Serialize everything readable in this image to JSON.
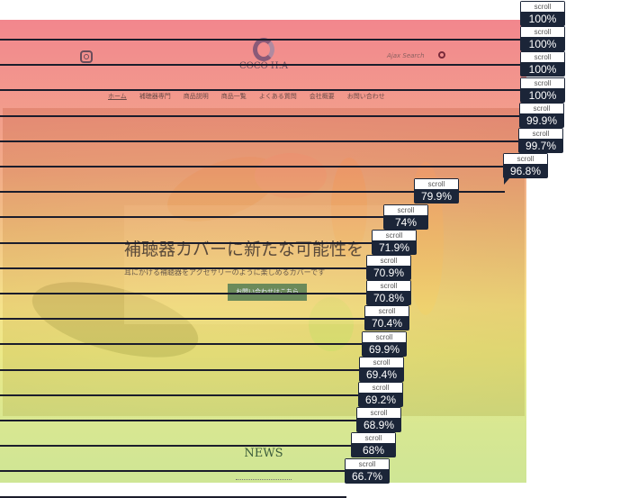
{
  "header": {
    "logo_text": "COCO H.A",
    "search_placeholder": "Ajax Search"
  },
  "nav": {
    "items": [
      "ホーム",
      "補聴器専門",
      "商品説明",
      "商品一覧",
      "よくある質問",
      "会社概要",
      "お問い合わせ"
    ]
  },
  "hero": {
    "title": "補聴器カバーに新たな可能性を",
    "subtitle": "耳にかける補聴器をアクセサリーのように楽しめるカバーです",
    "button": "お問い合わせはこちら"
  },
  "news": {
    "heading": "NEWS"
  },
  "heatmap": {
    "label": "scroll",
    "colors": {
      "top": "#ef6c74",
      "middle": "#f3dc72",
      "bottom": "#c4e07e",
      "marker": "#1b2538"
    },
    "markers": [
      "100%",
      "100%",
      "100%",
      "100%",
      "99.9%",
      "99.7%",
      "96.8%",
      "79.9%",
      "74%",
      "71.9%",
      "70.9%",
      "70.8%",
      "70.4%",
      "69.9%",
      "69.4%",
      "69.2%",
      "68.9%",
      "68%",
      "66.7%"
    ]
  }
}
